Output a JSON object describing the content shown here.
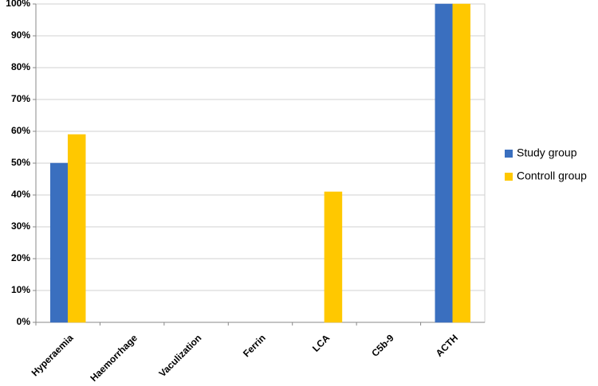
{
  "chart_data": {
    "type": "bar",
    "categories": [
      "Hyperaemia",
      "Haemorrhage",
      "Vaculization",
      "Ferrin",
      "LCA",
      "C5b-9",
      "ACTH"
    ],
    "series": [
      {
        "name": "Study group",
        "color": "#3a6fbf",
        "values": [
          50,
          0,
          0,
          0,
          0,
          0,
          100
        ]
      },
      {
        "name": "Controll group",
        "color": "#ffc800",
        "values": [
          59,
          0,
          0,
          0,
          41,
          0,
          100
        ]
      }
    ],
    "ylim": [
      0,
      100
    ],
    "yticks": [
      {
        "value": 0,
        "label": "0%"
      },
      {
        "value": 10,
        "label": "10%"
      },
      {
        "value": 20,
        "label": "20%"
      },
      {
        "value": 30,
        "label": "30%"
      },
      {
        "value": 40,
        "label": "40%"
      },
      {
        "value": 50,
        "label": "50%"
      },
      {
        "value": 60,
        "label": "60%"
      },
      {
        "value": 70,
        "label": "70%"
      },
      {
        "value": 80,
        "label": "80%"
      },
      {
        "value": 90,
        "label": "90%"
      },
      {
        "value": 100,
        "label": "100%"
      }
    ],
    "grid": true,
    "legend": "right"
  }
}
